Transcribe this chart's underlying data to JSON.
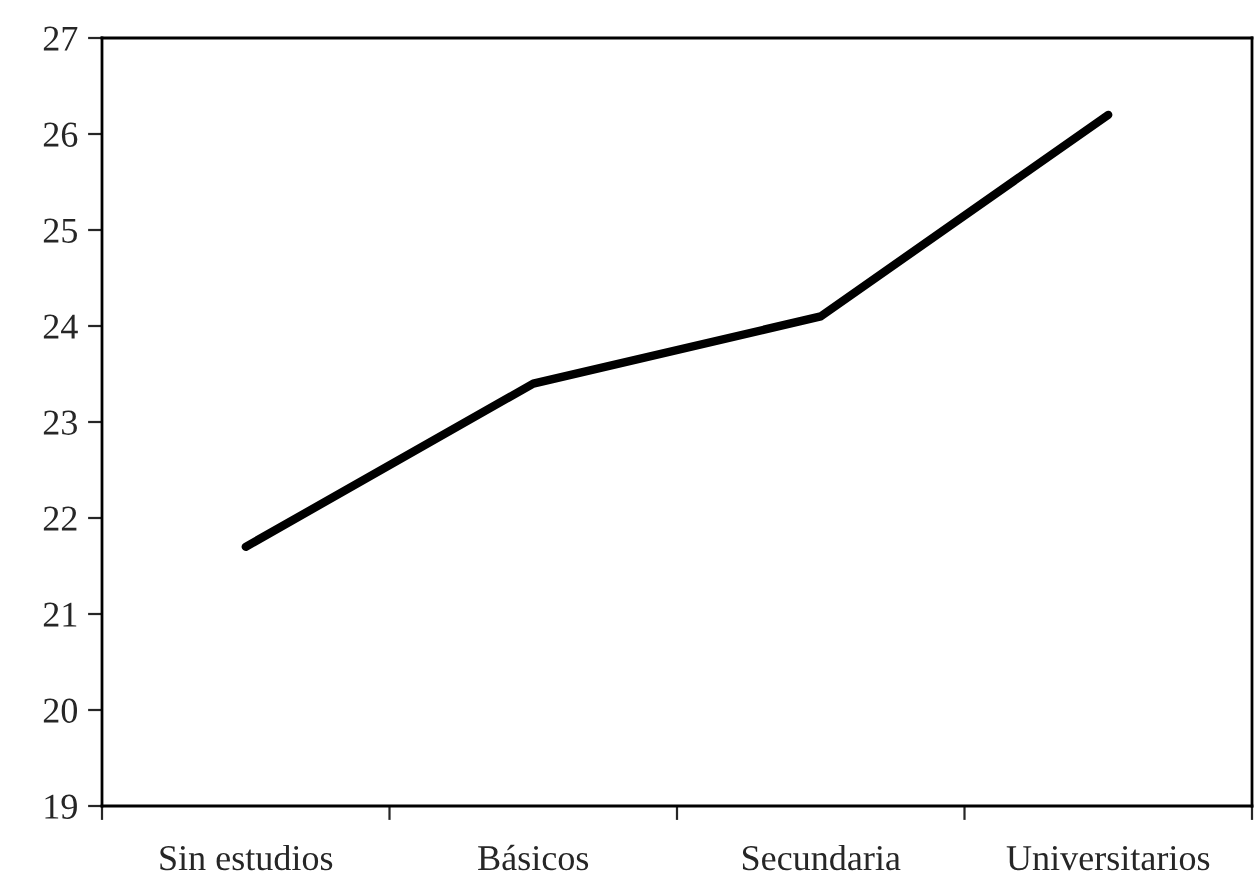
{
  "chart_data": {
    "type": "line",
    "categories": [
      "Sin estudios",
      "Básicos",
      "Secundaria",
      "Universitarios"
    ],
    "series": [
      {
        "color": "#000000",
        "values": [
          21.7,
          23.4,
          24.1,
          26.2
        ]
      }
    ],
    "ylim": [
      19,
      27
    ],
    "yticks": [
      19,
      20,
      21,
      22,
      23,
      24,
      25,
      26,
      27
    ],
    "marker": "none",
    "line_style": "solid"
  }
}
